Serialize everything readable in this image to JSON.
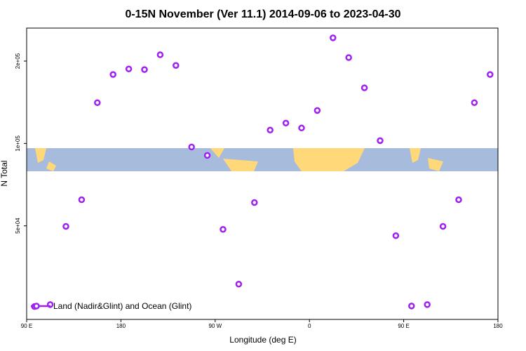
{
  "chart_data": {
    "type": "scatter",
    "title": "0-15N November (Ver 11.1)   2014-09-06 to 2023-04-30",
    "x_label": "Longitude (deg E)",
    "y_label": "N Total",
    "yscale": "log",
    "legend": "bottom-left",
    "xlim": [
      90,
      540
    ],
    "xticks": [
      {
        "value": 90,
        "label": "90 E"
      },
      {
        "value": 180,
        "label": "180"
      },
      {
        "value": 270,
        "label": "90 W"
      },
      {
        "value": 360,
        "label": "0"
      },
      {
        "value": 450,
        "label": "90 E"
      },
      {
        "value": 540,
        "label": "180"
      }
    ],
    "ylim": [
      22750,
      264000
    ],
    "yticks": [
      {
        "value": 50000,
        "label": "5e+04"
      },
      {
        "value": 100000,
        "label": "1e+05"
      },
      {
        "value": 200000,
        "label": "2e+05"
      }
    ],
    "series": [
      {
        "name": "Land (Nadir&Glint) and Ocean (Glint)",
        "color": "#a020f0",
        "x": [
          97.5,
          112.5,
          127.5,
          142.5,
          157.5,
          172.5,
          187.5,
          202.5,
          217.5,
          232.5,
          247.5,
          262.5,
          277.5,
          292.5,
          307.5,
          322.5,
          337.5,
          352.5,
          367.5,
          382.5,
          397.5,
          412.5,
          427.5,
          442.5,
          457.5,
          472.5,
          487.5,
          502.5,
          517.5,
          532.5
        ],
        "values": [
          25350,
          25770,
          49770,
          62270,
          140900,
          178600,
          187200,
          186200,
          210900,
          192800,
          97070,
          90420,
          48530,
          30610,
          60830,
          111900,
          118700,
          113900,
          132000,
          243200,
          206000,
          159700,
          102400,
          46030,
          25470,
          25770,
          49770,
          62270,
          140900,
          178600
        ]
      }
    ]
  }
}
